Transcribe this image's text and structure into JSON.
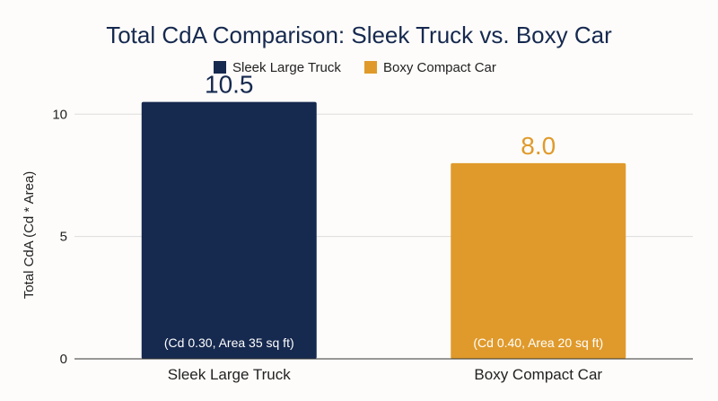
{
  "chart_data": {
    "type": "bar",
    "title": "Total CdA Comparison: Sleek Truck vs. Boxy Car",
    "xlabel": "",
    "ylabel": "Total CdA (Cd * Area)",
    "categories": [
      "Sleek Large Truck",
      "Boxy Compact Car"
    ],
    "values": [
      10.5,
      8.0
    ],
    "value_labels": [
      "10.5",
      "8.0"
    ],
    "bar_notes": [
      "(Cd 0.30, Area 35 sq ft)",
      "(Cd 0.40, Area 20 sq ft)"
    ],
    "series": [
      {
        "name": "Sleek Large Truck",
        "color": "#16294f"
      },
      {
        "name": "Boxy Compact Car",
        "color": "#e09a2b"
      }
    ],
    "ylim": [
      0,
      11
    ],
    "yticks": [
      0,
      5,
      10
    ],
    "grid": true,
    "legend_position": "top"
  },
  "colors": {
    "title": "#16294f",
    "truck": "#16294f",
    "car": "#e09a2b",
    "grid": "#dddddd",
    "axis": "#333333"
  }
}
